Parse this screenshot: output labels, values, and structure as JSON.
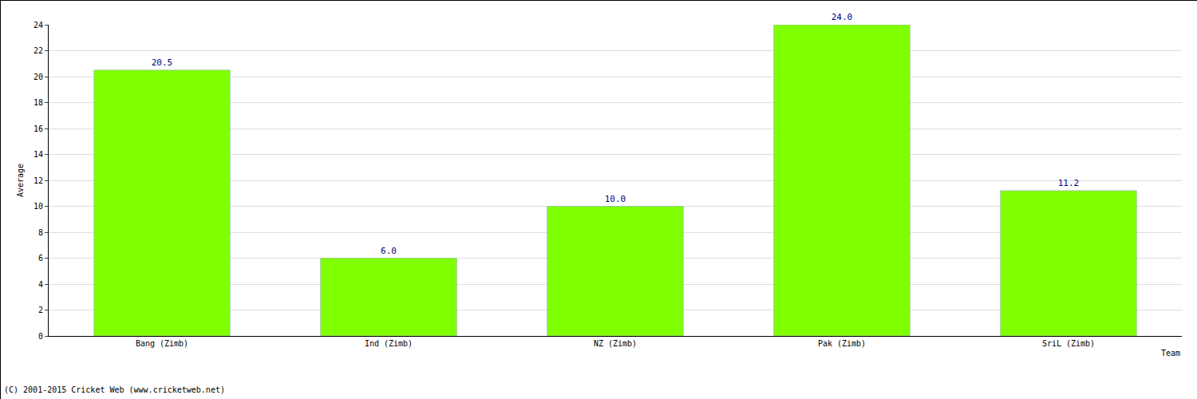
{
  "chart_data": {
    "type": "bar",
    "categories": [
      "Bang (Zimb)",
      "Ind (Zimb)",
      "NZ (Zimb)",
      "Pak (Zimb)",
      "SriL (Zimb)"
    ],
    "values": [
      20.5,
      6,
      10,
      24,
      11.2
    ],
    "value_labels": [
      "20.5",
      "6.0",
      "10.0",
      "24.0",
      "11.2"
    ],
    "data_labels": true,
    "color": "#80ff00",
    "x_label": "Team",
    "y_label": "Average",
    "ylim": [
      0,
      24
    ],
    "yticks": [
      0,
      2,
      4,
      6,
      8,
      10,
      12,
      14,
      16,
      18,
      20,
      22,
      24
    ],
    "grid": true,
    "annotations": [
      "(C) 2001-2015 Cricket Web (www.cricketweb.net)"
    ]
  }
}
